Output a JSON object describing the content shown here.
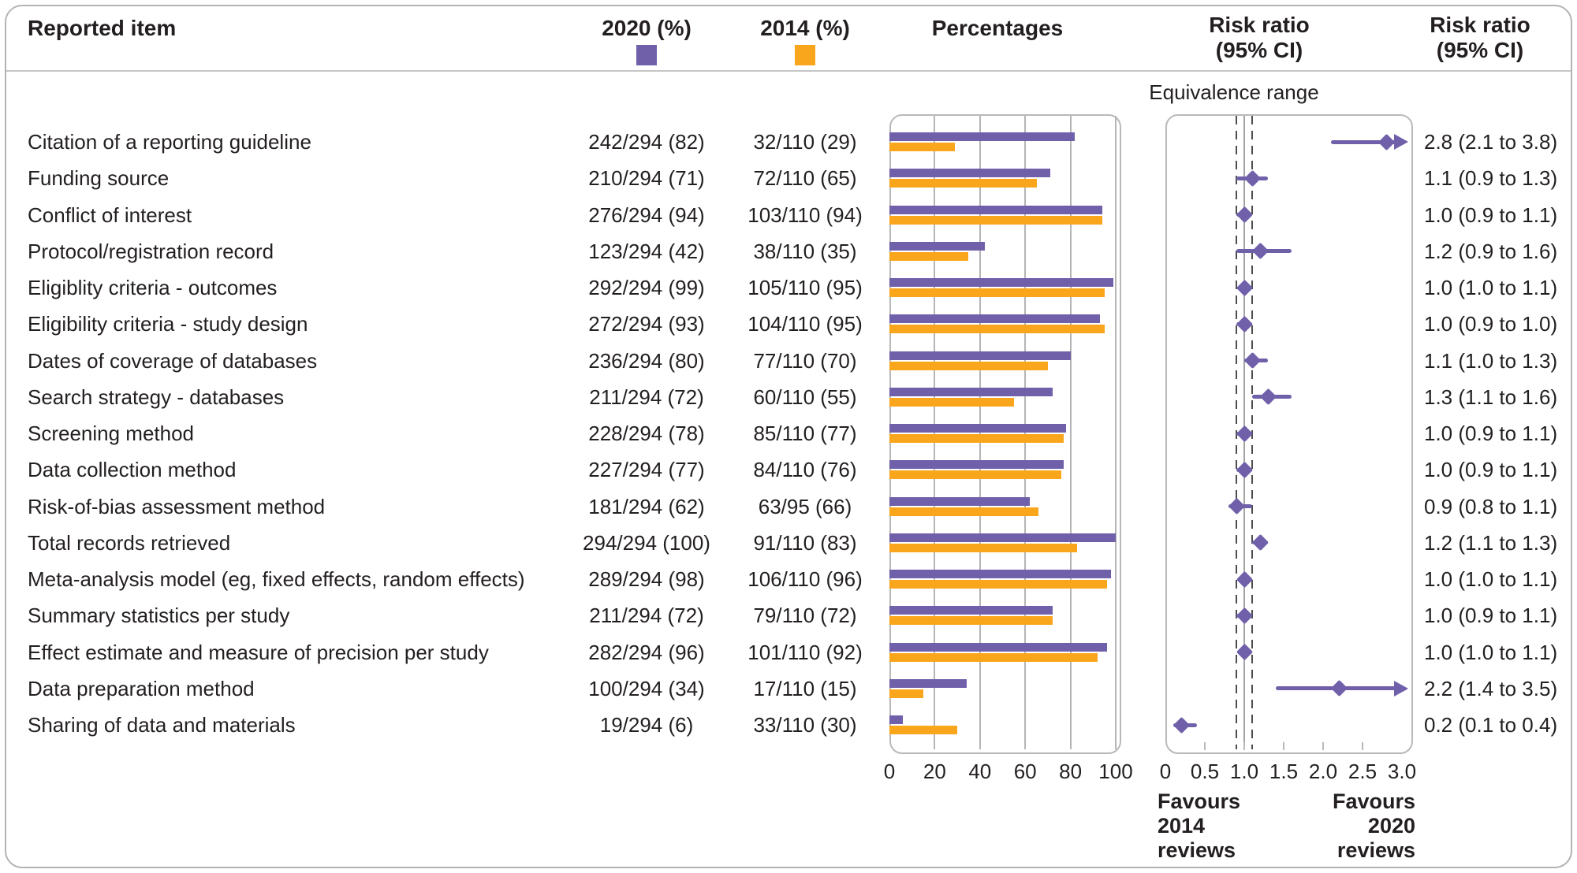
{
  "header": {
    "reported_item": "Reported item",
    "col_2020": "2020 (%)",
    "col_2014": "2014 (%)",
    "percentages": "Percentages",
    "risk_ratio_col1": "Risk ratio\n(95% CI)",
    "risk_ratio_col2": "Risk ratio\n(95% CI)",
    "equivalence_range": "Equivalence range"
  },
  "footer": {
    "favours_left": "Favours\n2014\nreviews",
    "favours_right": "Favours\n2020\nreviews"
  },
  "colors": {
    "purple_2020": "#7060AA",
    "orange_2014": "#F9A61C",
    "text": "#231F20",
    "panel_border": "#B9B9B9",
    "gridline": "#B5B5B5",
    "reference_line": "#A3A3A3",
    "equivalence_dash": "#4D4D4D"
  },
  "rows": [
    {
      "item": "Citation of a reporting guideline",
      "v2020": "242/294 (82)",
      "v2014": "32/110 (29)",
      "rr_text": "2.8 (2.1 to 3.8)"
    },
    {
      "item": "Funding source",
      "v2020": "210/294 (71)",
      "v2014": "72/110 (65)",
      "rr_text": "1.1 (0.9 to 1.3)"
    },
    {
      "item": "Conflict of interest",
      "v2020": "276/294 (94)",
      "v2014": "103/110 (94)",
      "rr_text": "1.0 (0.9 to 1.1)"
    },
    {
      "item": "Protocol/registration record",
      "v2020": "123/294 (42)",
      "v2014": "38/110 (35)",
      "rr_text": "1.2 (0.9 to 1.6)"
    },
    {
      "item": "Eligiblity criteria - outcomes",
      "v2020": "292/294 (99)",
      "v2014": "105/110 (95)",
      "rr_text": "1.0 (1.0 to 1.1)"
    },
    {
      "item": "Eligibility criteria - study design",
      "v2020": "272/294 (93)",
      "v2014": "104/110 (95)",
      "rr_text": "1.0 (0.9 to 1.0)"
    },
    {
      "item": "Dates of coverage of databases",
      "v2020": "236/294 (80)",
      "v2014": "77/110 (70)",
      "rr_text": "1.1 (1.0 to 1.3)"
    },
    {
      "item": "Search strategy - databases",
      "v2020": "211/294 (72)",
      "v2014": "60/110 (55)",
      "rr_text": "1.3 (1.1 to 1.6)"
    },
    {
      "item": "Screening method",
      "v2020": "228/294 (78)",
      "v2014": "85/110 (77)",
      "rr_text": "1.0 (0.9 to 1.1)"
    },
    {
      "item": "Data collection method",
      "v2020": "227/294 (77)",
      "v2014": "84/110 (76)",
      "rr_text": "1.0 (0.9 to 1.1)"
    },
    {
      "item": "Risk-of-bias assessment method",
      "v2020": "181/294 (62)",
      "v2014": "63/95 (66)",
      "rr_text": "0.9 (0.8 to 1.1)"
    },
    {
      "item": "Total records retrieved",
      "v2020": "294/294 (100)",
      "v2014": "91/110 (83)",
      "rr_text": "1.2 (1.1 to 1.3)"
    },
    {
      "item": "Meta-analysis model (eg, fixed effects, random effects)",
      "v2020": "289/294 (98)",
      "v2014": "106/110 (96)",
      "rr_text": "1.0 (1.0 to 1.1)"
    },
    {
      "item": "Summary statistics per study",
      "v2020": "211/294 (72)",
      "v2014": "79/110 (72)",
      "rr_text": "1.0 (0.9 to 1.1)"
    },
    {
      "item": "Effect estimate and measure of precision per study",
      "v2020": "282/294 (96)",
      "v2014": "101/110 (92)",
      "rr_text": "1.0 (1.0 to 1.1)"
    },
    {
      "item": "Data preparation method",
      "v2020": "100/294 (34)",
      "v2014": "17/110 (15)",
      "rr_text": "2.2 (1.4 to 3.5)"
    },
    {
      "item": "Sharing of data and materials",
      "v2020": "19/294 (6)",
      "v2014": "33/110 (30)",
      "rr_text": "0.2 (0.1 to 0.4)"
    }
  ],
  "chart_data": [
    {
      "type": "bar",
      "orientation": "horizontal",
      "title": "Percentages",
      "categories": [
        "Citation of a reporting guideline",
        "Funding source",
        "Conflict of interest",
        "Protocol/registration record",
        "Eligiblity criteria - outcomes",
        "Eligibility criteria - study design",
        "Dates of coverage of databases",
        "Search strategy - databases",
        "Screening method",
        "Data collection method",
        "Risk-of-bias assessment method",
        "Total records retrieved",
        "Meta-analysis model (eg, fixed effects, random effects)",
        "Summary statistics per study",
        "Effect estimate and measure of precision per study",
        "Data preparation method",
        "Sharing of data and materials"
      ],
      "series": [
        {
          "name": "2020 (%)",
          "color": "#7060AA",
          "values": [
            82,
            71,
            94,
            42,
            99,
            93,
            80,
            72,
            78,
            77,
            62,
            100,
            98,
            72,
            96,
            34,
            6
          ]
        },
        {
          "name": "2014 (%)",
          "color": "#F9A61C",
          "values": [
            29,
            65,
            94,
            35,
            95,
            95,
            70,
            55,
            77,
            76,
            66,
            83,
            96,
            72,
            92,
            15,
            30
          ]
        }
      ],
      "xlim": [
        0,
        100
      ],
      "xticks": [
        "0",
        "20",
        "40",
        "60",
        "80",
        "100"
      ],
      "grid": true,
      "legend_position": "top"
    },
    {
      "type": "scatter",
      "subtype": "forest-plot",
      "title": "Risk ratio (95% CI)",
      "xlim": [
        0,
        3
      ],
      "xticks": [
        "0",
        "0.5",
        "1.0",
        "1.5",
        "2.0",
        "2.5",
        "3.0"
      ],
      "xtick_values": [
        0,
        0.5,
        1.0,
        1.5,
        2.0,
        2.5,
        3.0
      ],
      "reference_line": 1.0,
      "equivalence_range": [
        0.9,
        1.1
      ],
      "marker_color": "#7060AA",
      "points": [
        {
          "rr": 2.8,
          "lo": 2.1,
          "hi": 3.8,
          "clipped_right": true
        },
        {
          "rr": 1.1,
          "lo": 0.9,
          "hi": 1.3,
          "clipped_right": false
        },
        {
          "rr": 1.0,
          "lo": 0.9,
          "hi": 1.1,
          "clipped_right": false
        },
        {
          "rr": 1.2,
          "lo": 0.9,
          "hi": 1.6,
          "clipped_right": false
        },
        {
          "rr": 1.0,
          "lo": 1.0,
          "hi": 1.1,
          "clipped_right": false
        },
        {
          "rr": 1.0,
          "lo": 0.9,
          "hi": 1.0,
          "clipped_right": false
        },
        {
          "rr": 1.1,
          "lo": 1.0,
          "hi": 1.3,
          "clipped_right": false
        },
        {
          "rr": 1.3,
          "lo": 1.1,
          "hi": 1.6,
          "clipped_right": false
        },
        {
          "rr": 1.0,
          "lo": 0.9,
          "hi": 1.1,
          "clipped_right": false
        },
        {
          "rr": 1.0,
          "lo": 0.9,
          "hi": 1.1,
          "clipped_right": false
        },
        {
          "rr": 0.9,
          "lo": 0.8,
          "hi": 1.1,
          "clipped_right": false
        },
        {
          "rr": 1.2,
          "lo": 1.1,
          "hi": 1.3,
          "clipped_right": false
        },
        {
          "rr": 1.0,
          "lo": 1.0,
          "hi": 1.1,
          "clipped_right": false
        },
        {
          "rr": 1.0,
          "lo": 0.9,
          "hi": 1.1,
          "clipped_right": false
        },
        {
          "rr": 1.0,
          "lo": 1.0,
          "hi": 1.1,
          "clipped_right": false
        },
        {
          "rr": 2.2,
          "lo": 1.4,
          "hi": 3.5,
          "clipped_right": true
        },
        {
          "rr": 0.2,
          "lo": 0.1,
          "hi": 0.4,
          "clipped_right": false
        }
      ]
    }
  ]
}
